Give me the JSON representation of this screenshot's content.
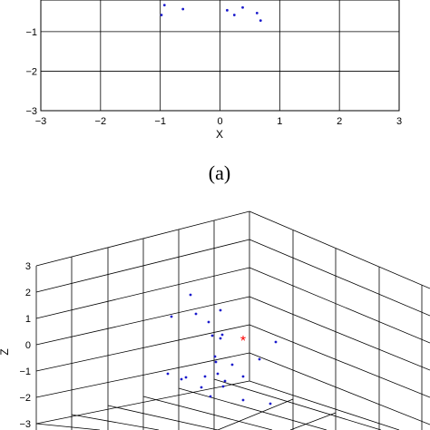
{
  "chart_data": [
    {
      "type": "scatter",
      "xlabel": "X",
      "ylabel": "",
      "xlim": [
        -3,
        3
      ],
      "ylim": [
        -3,
        3
      ],
      "visible_ylim": [
        -3,
        -0.2
      ],
      "x_ticks": [
        "−3",
        "−2",
        "−1",
        "0",
        "1",
        "2",
        "3"
      ],
      "y_ticks": [
        "−1",
        "−2",
        "−3"
      ],
      "grid": true,
      "point_color": "#1a1acc",
      "points": [
        {
          "x": -0.93,
          "y": -0.33
        },
        {
          "x": -0.98,
          "y": -0.58
        },
        {
          "x": -0.62,
          "y": -0.43
        },
        {
          "x": 0.12,
          "y": -0.46
        },
        {
          "x": 0.24,
          "y": -0.58
        },
        {
          "x": 0.38,
          "y": -0.39
        },
        {
          "x": 0.62,
          "y": -0.53
        },
        {
          "x": 0.68,
          "y": -0.72
        }
      ],
      "caption": "(a)"
    },
    {
      "type": "scatter",
      "zlabel": "Z",
      "zlim": [
        -3,
        3
      ],
      "z_ticks": [
        "3",
        "2",
        "1",
        "0",
        "−1",
        "−2",
        "−3"
      ],
      "grid": true,
      "point_color": "#1a1acc",
      "marker_color": "#ff0000",
      "marker_glyph": "*"
    }
  ]
}
